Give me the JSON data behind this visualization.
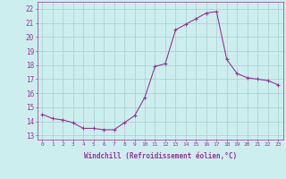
{
  "x": [
    0,
    1,
    2,
    3,
    4,
    5,
    6,
    7,
    8,
    9,
    10,
    11,
    12,
    13,
    14,
    15,
    16,
    17,
    18,
    19,
    20,
    21,
    22,
    23
  ],
  "y": [
    14.5,
    14.2,
    14.1,
    13.9,
    13.5,
    13.5,
    13.4,
    13.4,
    13.9,
    14.4,
    15.7,
    17.9,
    18.1,
    20.5,
    20.9,
    21.3,
    21.7,
    21.8,
    18.4,
    17.4,
    17.1,
    17.0,
    16.9,
    16.6
  ],
  "line_color": "#993399",
  "marker": "+",
  "bg_color": "#cceeee",
  "grid_color": "#aacccc",
  "xlabel": "Windchill (Refroidissement éolien,°C)",
  "xlabel_color": "#993399",
  "ylabel_ticks": [
    13,
    14,
    15,
    16,
    17,
    18,
    19,
    20,
    21,
    22
  ],
  "ylim": [
    12.7,
    22.5
  ],
  "xlim": [
    -0.5,
    23.5
  ],
  "tick_color": "#993399",
  "markersize": 3,
  "linewidth": 0.8
}
